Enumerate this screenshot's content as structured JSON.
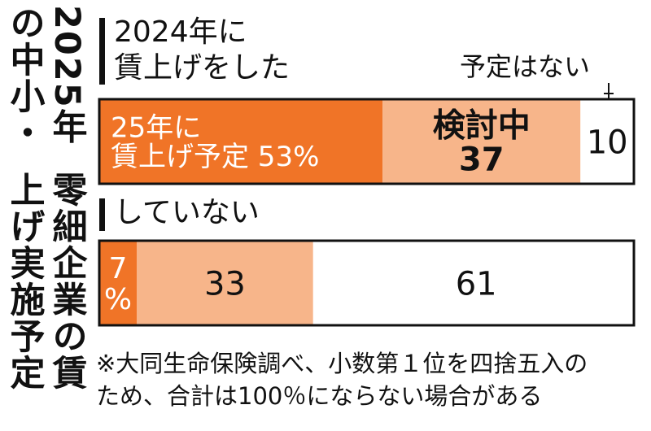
{
  "title": {
    "line1": "2025年の中小・",
    "line2": "零細企業の賃上げ実施予定"
  },
  "groups": [
    {
      "label": "2024年に\n賃上げをした"
    },
    {
      "label": "していない"
    }
  ],
  "annotation": "予定はない",
  "chart_data": {
    "type": "bar",
    "stacked": true,
    "orientation": "horizontal",
    "categories": [
      "2024年に賃上げをした",
      "していない"
    ],
    "series": [
      {
        "name": "25年に賃上げ予定",
        "color": "#f07427",
        "values": [
          53,
          7
        ],
        "labels": [
          "25年に\n賃上げ予定  53%",
          "7\n%"
        ]
      },
      {
        "name": "検討中",
        "color": "#f7b58a",
        "values": [
          37,
          33
        ],
        "labels": [
          "検討中\n37",
          "33"
        ]
      },
      {
        "name": "予定はない",
        "color": "#ffffff",
        "values": [
          10,
          61
        ],
        "labels": [
          "10",
          "61"
        ]
      }
    ],
    "xlim": [
      0,
      100
    ]
  },
  "note": {
    "line1": "※大同生命保険調べ、小数第１位を四捨五入の",
    "line2": "ため、合計は100％にならない場合がある"
  }
}
